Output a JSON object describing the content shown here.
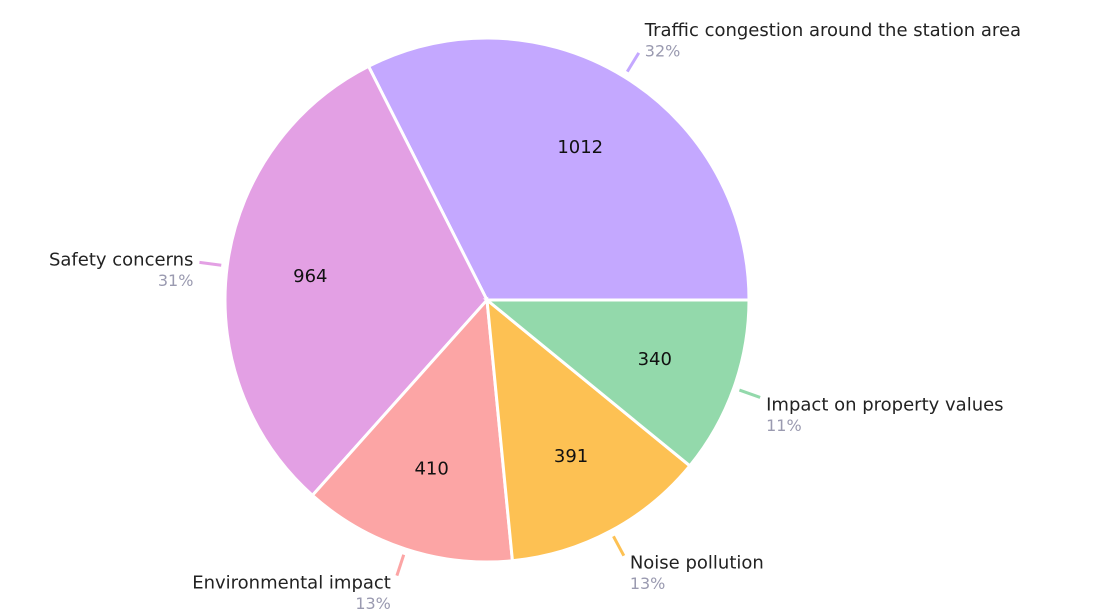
{
  "chart_data": {
    "type": "pie",
    "categories": [
      "Traffic congestion around the station area",
      "Safety concerns",
      "Environmental impact",
      "Noise pollution",
      "Impact on property values"
    ],
    "values": [
      1012,
      964,
      410,
      391,
      340
    ],
    "percent_labels": [
      "32%",
      "31%",
      "13%",
      "13%",
      "11%"
    ],
    "colors": [
      "#c4a8ff",
      "#e3a0e4",
      "#fca5a5",
      "#fdc153",
      "#93d9ab"
    ]
  }
}
